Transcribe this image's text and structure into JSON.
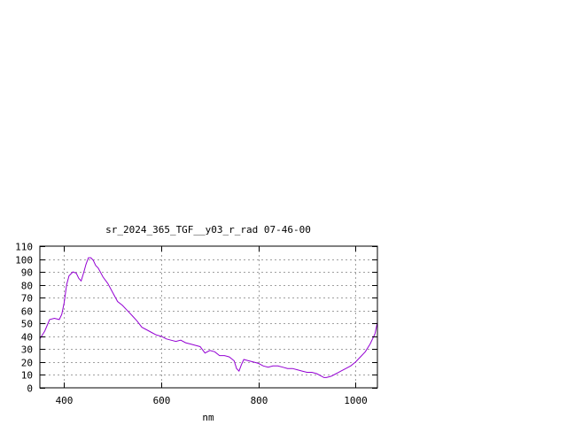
{
  "chart_data": {
    "type": "line",
    "title": "sr_2024_365_TGF__y03_r_rad 07-46-00",
    "xlabel": "nm",
    "ylabel": "",
    "xlim": [
      350,
      1045
    ],
    "ylim": [
      0,
      110
    ],
    "xticks": [
      400,
      600,
      800,
      1000
    ],
    "yticks": [
      0,
      10,
      20,
      30,
      40,
      50,
      60,
      70,
      80,
      90,
      100,
      110
    ],
    "grid": true,
    "legend": "none",
    "line_color": "#9400d3",
    "series": [
      {
        "x": [
          350,
          360,
          370,
          380,
          390,
          395,
          400,
          405,
          410,
          418,
          425,
          430,
          435,
          440,
          445,
          450,
          455,
          460,
          465,
          470,
          480,
          490,
          500,
          510,
          520,
          530,
          540,
          550,
          560,
          570,
          580,
          590,
          600,
          610,
          620,
          630,
          640,
          650,
          660,
          670,
          680,
          690,
          700,
          710,
          720,
          730,
          740,
          750,
          755,
          760,
          765,
          770,
          780,
          790,
          800,
          810,
          820,
          830,
          840,
          850,
          860,
          870,
          880,
          890,
          900,
          910,
          920,
          930,
          935,
          940,
          950,
          960,
          970,
          980,
          990,
          1000,
          1010,
          1020,
          1030,
          1040,
          1045
        ],
        "y": [
          38,
          44,
          53,
          54,
          53,
          57,
          66,
          80,
          87,
          90,
          89,
          85,
          83,
          89,
          96,
          101,
          101,
          99,
          95,
          93,
          86,
          81,
          74,
          67,
          64,
          60,
          56,
          52,
          47,
          45,
          43,
          41,
          40,
          38,
          37,
          36,
          37,
          35,
          34,
          33,
          32,
          27,
          29,
          28,
          25,
          25,
          24,
          21,
          15,
          13,
          18,
          22,
          21,
          20,
          19,
          17,
          16,
          17,
          17,
          16,
          15,
          15,
          14,
          13,
          12,
          12,
          11,
          9,
          8,
          8,
          9,
          11,
          13,
          15,
          17,
          20,
          24,
          28,
          34,
          42,
          51
        ]
      }
    ]
  }
}
